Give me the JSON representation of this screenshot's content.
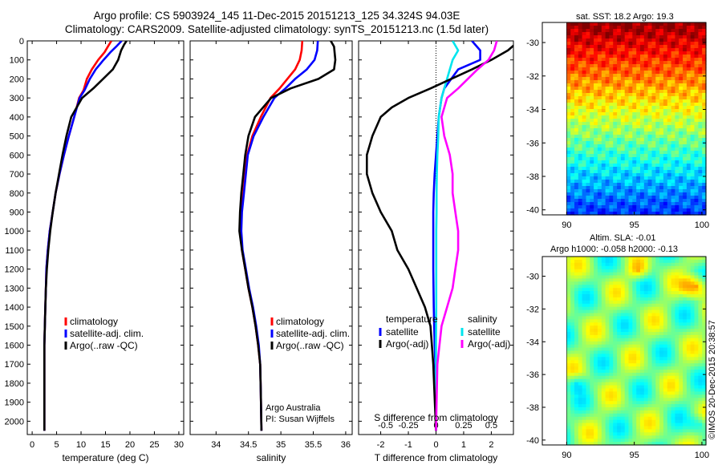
{
  "title": {
    "line1": "Argo profile: CS 5903924_145 11-Dec-2015 20151213_125 34.324S 94.03E",
    "line2": "Climatology: CARS2009. Satellite-adjusted climatology: synTS_20151213.nc (1.5d later)"
  },
  "chart_data": [
    {
      "type": "line",
      "name": "temperature profile",
      "xlabel": "temperature (deg C)",
      "xlim": [
        -1,
        31
      ],
      "xticks": [
        0,
        5,
        10,
        15,
        20,
        25,
        30
      ],
      "ylim": [
        2070,
        0
      ],
      "yticks": [
        0,
        100,
        200,
        300,
        400,
        500,
        600,
        700,
        800,
        900,
        1000,
        1100,
        1200,
        1300,
        1400,
        1500,
        1600,
        1700,
        1800,
        1900,
        2000
      ],
      "series": [
        {
          "name": "climatology",
          "color": "#ff0000",
          "x": [
            16.2,
            15.5,
            14.8,
            13.5,
            12.2,
            11.2,
            10.5,
            9.6,
            8.6,
            7.5,
            6.5,
            5.6,
            4.8,
            4.2,
            3.6,
            3.2,
            2.9,
            2.8,
            2.7,
            2.6,
            2.5,
            2.5,
            2.5
          ],
          "y": [
            0,
            30,
            60,
            100,
            150,
            200,
            260,
            300,
            400,
            500,
            600,
            700,
            800,
            900,
            1000,
            1100,
            1200,
            1300,
            1400,
            1500,
            1600,
            1800,
            2050
          ]
        },
        {
          "name": "satellite-adj. clim.",
          "color": "#0000ff",
          "x": [
            18.3,
            17.2,
            16.0,
            14.6,
            13.0,
            11.8,
            10.7,
            9.7,
            8.6,
            7.5,
            6.5,
            5.6,
            4.8,
            4.2,
            3.6,
            3.2,
            2.9,
            2.8,
            2.7,
            2.6,
            2.5,
            2.5,
            2.5
          ],
          "y": [
            0,
            30,
            60,
            100,
            150,
            200,
            260,
            300,
            400,
            500,
            600,
            700,
            800,
            900,
            1000,
            1100,
            1200,
            1300,
            1400,
            1500,
            1600,
            1800,
            2050
          ]
        },
        {
          "name": "Argo(..raw -QC)",
          "color": "#000000",
          "x": [
            19.3,
            18.8,
            18.2,
            17.6,
            16.5,
            14.5,
            12.5,
            10.2,
            8.0,
            7.0,
            6.2,
            5.5,
            4.8,
            4.2,
            3.7,
            3.3,
            3.0,
            2.8,
            2.7,
            2.6,
            2.5,
            2.5,
            2.5
          ],
          "y": [
            0,
            20,
            50,
            100,
            150,
            200,
            250,
            300,
            400,
            500,
            600,
            700,
            800,
            900,
            1000,
            1100,
            1200,
            1300,
            1400,
            1500,
            1600,
            1800,
            2050
          ]
        }
      ],
      "legend": [
        "climatology",
        "satellite-adj. clim.",
        "Argo(..raw -QC)"
      ]
    },
    {
      "type": "line",
      "name": "salinity profile",
      "xlabel": "salinity",
      "xlim": [
        33.6,
        36.1
      ],
      "xticks": [
        34,
        34.5,
        35,
        35.5,
        36
      ],
      "xticklabels": [
        "34",
        "34.5",
        "35",
        "35.5",
        "36"
      ],
      "ylim": [
        2070,
        0
      ],
      "series": [
        {
          "name": "climatology",
          "color": "#ff0000",
          "x": [
            35.33,
            35.32,
            35.29,
            35.22,
            35.1,
            34.98,
            34.84,
            34.69,
            34.56,
            34.48,
            34.45,
            34.42,
            34.39,
            34.38,
            34.4,
            34.45,
            34.5,
            34.56,
            34.61,
            34.65,
            34.68,
            34.69,
            34.7
          ],
          "y": [
            0,
            50,
            100,
            150,
            200,
            250,
            300,
            400,
            500,
            600,
            700,
            800,
            900,
            1000,
            1100,
            1200,
            1300,
            1400,
            1500,
            1600,
            1700,
            1850,
            2050
          ]
        },
        {
          "name": "satellite-adj. clim.",
          "color": "#0000ff",
          "x": [
            35.57,
            35.56,
            35.52,
            35.4,
            35.22,
            35.07,
            34.9,
            34.73,
            34.58,
            34.49,
            34.46,
            34.43,
            34.4,
            34.39,
            34.41,
            34.46,
            34.51,
            34.57,
            34.62,
            34.66,
            34.68,
            34.69,
            34.7
          ],
          "y": [
            0,
            50,
            100,
            150,
            200,
            250,
            300,
            400,
            500,
            600,
            700,
            800,
            900,
            1000,
            1100,
            1200,
            1300,
            1400,
            1500,
            1600,
            1700,
            1850,
            2050
          ]
        },
        {
          "name": "Argo(..raw -QC)",
          "color": "#000000",
          "x": [
            35.77,
            35.82,
            35.84,
            35.82,
            35.58,
            35.15,
            34.85,
            34.6,
            34.5,
            34.45,
            34.42,
            34.39,
            34.37,
            34.36,
            34.4,
            34.45,
            34.5,
            34.56,
            34.61,
            34.65,
            34.68,
            34.69,
            34.7
          ],
          "y": [
            0,
            30,
            100,
            150,
            200,
            250,
            300,
            400,
            500,
            600,
            700,
            800,
            900,
            1000,
            1100,
            1200,
            1300,
            1400,
            1500,
            1600,
            1700,
            1850,
            2050
          ]
        }
      ],
      "legend": [
        "climatology",
        "satellite-adj. clim.",
        "Argo(..raw -QC)"
      ],
      "annotation": {
        "line1": "Argo Australia",
        "line2": "PI: Susan Wijffels"
      }
    },
    {
      "type": "line",
      "name": "difference from climatology",
      "xlabel_bottom": "T difference from climatology",
      "xlabel_top": "S difference from climatology",
      "xlim": [
        -2.8,
        2.8
      ],
      "xticks": [
        -2,
        -1,
        0,
        1,
        2
      ],
      "s_ticklabels": [
        "-0.5",
        "-0.25",
        "0",
        "0.25",
        "0.5"
      ],
      "ylim": [
        2070,
        0
      ],
      "series": [
        {
          "name": "temperature satellite",
          "color": "#0000ff",
          "x": [
            1.3,
            1.6,
            1.6,
            0.8,
            0.3,
            0.2,
            0.1,
            0.05,
            0.0,
            -0.05,
            -0.08,
            -0.1,
            -0.1,
            -0.1,
            -0.08,
            -0.05,
            0,
            0,
            0
          ],
          "y": [
            0,
            50,
            100,
            150,
            250,
            300,
            400,
            500,
            600,
            700,
            800,
            900,
            1000,
            1200,
            1400,
            1600,
            1800,
            1950,
            2050
          ]
        },
        {
          "name": "salinity satellite",
          "color": "#00e5ee",
          "x": [
            0.6,
            0.8,
            0.6,
            0.5,
            0.3,
            0.2,
            0.1,
            0.08,
            0.05,
            0.03,
            0.02,
            0.02,
            0.01,
            0.01,
            0.01,
            0,
            0,
            0
          ],
          "y": [
            0,
            50,
            100,
            150,
            250,
            300,
            400,
            500,
            600,
            700,
            800,
            900,
            1000,
            1200,
            1400,
            1600,
            1800,
            2050
          ]
        },
        {
          "name": "temperature Argo(-adj)",
          "color": "#000000",
          "x": [
            3.0,
            2.6,
            2.0,
            1.3,
            -0.2,
            -1.0,
            -1.6,
            -2.0,
            -2.3,
            -2.5,
            -2.5,
            -2.3,
            -2.0,
            -1.6,
            -1.4,
            -1.0,
            -0.7,
            -0.4,
            -0.2,
            -0.1,
            0
          ],
          "y": [
            0,
            50,
            100,
            150,
            250,
            300,
            350,
            400,
            500,
            600,
            700,
            800,
            900,
            1000,
            1100,
            1200,
            1300,
            1400,
            1500,
            1700,
            2050
          ]
        },
        {
          "name": "salinity Argo(-adj)",
          "color": "#ff00ff",
          "x": [
            2.2,
            2.1,
            1.9,
            1.5,
            0.8,
            0.4,
            0.2,
            0.3,
            0.5,
            0.6,
            0.6,
            0.7,
            0.8,
            0.8,
            0.7,
            0.6,
            0.4,
            0.2,
            0.05,
            0
          ],
          "y": [
            0,
            50,
            100,
            150,
            250,
            300,
            400,
            500,
            600,
            700,
            800,
            900,
            1000,
            1100,
            1200,
            1300,
            1400,
            1500,
            1700,
            2050
          ]
        }
      ],
      "legend": {
        "temperature_heading": "temperature",
        "salinity_heading": "salinity",
        "items": [
          "satellite",
          "Argo(-adj)",
          "satellite",
          "Argo(-adj)"
        ]
      }
    },
    {
      "type": "heatmap",
      "name": "sea surface temperature map",
      "title": "sat. SST: 18.2  Argo: 19.3",
      "xlim": [
        88.2,
        100.3
      ],
      "xticks": [
        90,
        95,
        100
      ],
      "ylim": [
        -40.3,
        -28.8
      ],
      "yticks": [
        -30,
        -32,
        -34,
        -36,
        -38,
        -40
      ],
      "colormap": "jet, warm to north"
    },
    {
      "type": "heatmap",
      "name": "altimetry sea level anomaly map",
      "title_line1": "Altim. SLA: -0.01",
      "title_line2": "Argo h1000: -0.058 h2000: -0.13",
      "xlim": [
        88.2,
        100.3
      ],
      "xticks": [
        90,
        95,
        100
      ],
      "ylim": [
        -40.3,
        -28.8
      ],
      "yticks": [
        -30,
        -32,
        -34,
        -36,
        -38,
        -40
      ],
      "colormap": "jet, mostly green"
    }
  ],
  "footer": {
    "credit": "©IMOS 20-Dec-2015 20:38:57"
  }
}
